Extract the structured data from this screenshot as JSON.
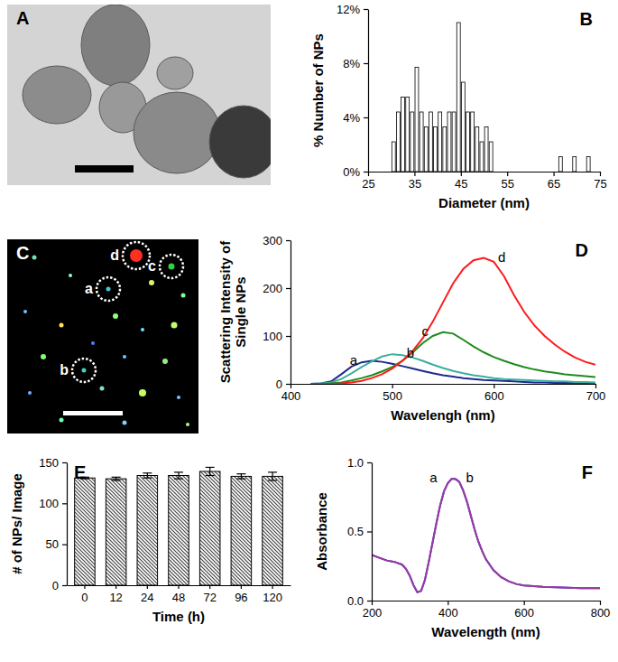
{
  "chart_data": [
    {
      "type": "image",
      "title": "A"
    },
    {
      "type": "histogram",
      "title": "B",
      "x_label": "Diameter (nm)",
      "y_label": "% Number of NPs",
      "bins": [
        30,
        31,
        32,
        33,
        34,
        35,
        36,
        37,
        38,
        39,
        40,
        41,
        42,
        43,
        44,
        45,
        46,
        47,
        48,
        49,
        50,
        51,
        52,
        53,
        54,
        55,
        56,
        57,
        58,
        59,
        60,
        61,
        62,
        63,
        64,
        65,
        66,
        67,
        68,
        69,
        70,
        71,
        72,
        73
      ],
      "values": [
        2.2,
        4.4,
        5.5,
        5.5,
        4.4,
        7.7,
        4.4,
        3.3,
        4.4,
        3.3,
        4.4,
        3.3,
        4.4,
        4.4,
        11.0,
        6.6,
        4.4,
        4.4,
        3.3,
        2.2,
        3.3,
        2.2,
        0,
        0,
        0,
        0,
        0,
        0,
        0,
        0,
        0,
        0,
        0,
        0,
        0,
        0,
        1.1,
        0,
        0,
        1.1,
        0,
        0,
        1.1
      ],
      "color": "#ffffff",
      "xlim": [
        25,
        75
      ],
      "xticks": [
        25,
        35,
        45,
        55,
        65,
        75
      ],
      "ylim": [
        0,
        12
      ],
      "yticks": [
        {
          "value": 0,
          "label": "0%"
        },
        {
          "value": 4,
          "label": "4%"
        },
        {
          "value": 8,
          "label": "8%"
        },
        {
          "value": 12,
          "label": "12%"
        }
      ]
    },
    {
      "type": "image",
      "title": "C",
      "annotations": [
        "a",
        "b",
        "c",
        "d"
      ]
    },
    {
      "type": "line",
      "title": "D",
      "x_label": "Wavelengh (nm)",
      "y_label": [
        "Scattering Intensity of",
        "Single NPs"
      ],
      "x": [
        420,
        430,
        440,
        450,
        460,
        470,
        480,
        490,
        500,
        510,
        520,
        530,
        540,
        550,
        560,
        570,
        580,
        590,
        600,
        610,
        620,
        630,
        640,
        650,
        660,
        670,
        680,
        690,
        700
      ],
      "series": [
        {
          "name": "a",
          "color": "#1c2a8c",
          "values": [
            0,
            1,
            5,
            20,
            36,
            45,
            48,
            46,
            42,
            37,
            32,
            27,
            22,
            18,
            15,
            12,
            10,
            8,
            7,
            6,
            5,
            4,
            3,
            3,
            2,
            2,
            2,
            1,
            1
          ]
        },
        {
          "name": "b",
          "color": "#3cae9e",
          "values": [
            0,
            1,
            3,
            10,
            22,
            35,
            47,
            57,
            62,
            60,
            55,
            48,
            40,
            33,
            27,
            22,
            18,
            15,
            12,
            10,
            9,
            8,
            7,
            6,
            5,
            5,
            4,
            4,
            3
          ]
        },
        {
          "name": "c",
          "color": "#1e8c1e",
          "values": [
            0,
            0,
            1,
            3,
            7,
            12,
            18,
            26,
            35,
            48,
            65,
            85,
            100,
            108,
            105,
            92,
            78,
            66,
            56,
            48,
            41,
            35,
            30,
            26,
            23,
            20,
            18,
            16,
            14
          ]
        },
        {
          "name": "d",
          "color": "#ff1a1a",
          "values": [
            0,
            0,
            0,
            1,
            3,
            6,
            12,
            20,
            32,
            48,
            68,
            95,
            130,
            170,
            210,
            240,
            258,
            263,
            255,
            225,
            185,
            150,
            122,
            100,
            82,
            67,
            55,
            46,
            40
          ]
        }
      ],
      "xlim": [
        400,
        700
      ],
      "xticks": [
        400,
        500,
        600,
        700
      ],
      "ylim": [
        0,
        300
      ],
      "yticks": [
        0,
        100,
        200,
        300
      ]
    },
    {
      "type": "bar",
      "title": "E",
      "x_label": "Time (h)",
      "y_label": "# of NPs/ Image",
      "categories": [
        "0",
        "12",
        "24",
        "48",
        "72",
        "96",
        "120"
      ],
      "values": [
        131,
        130,
        134,
        134,
        139,
        133,
        133
      ],
      "errors": [
        1,
        2,
        3,
        4,
        5,
        3,
        5
      ],
      "color": "#444444",
      "ylim": [
        0,
        150
      ],
      "yticks": [
        0,
        50,
        100,
        150
      ]
    },
    {
      "type": "line",
      "title": "F",
      "x_label": "Wavelength (nm)",
      "y_label": "Absorbance",
      "x": [
        200,
        220,
        240,
        260,
        280,
        290,
        300,
        310,
        320,
        330,
        340,
        350,
        360,
        370,
        380,
        390,
        400,
        410,
        420,
        430,
        440,
        450,
        460,
        470,
        480,
        490,
        500,
        520,
        540,
        560,
        580,
        600,
        650,
        700,
        750,
        800
      ],
      "series": [
        {
          "name": "a",
          "color": "#3a3ad0",
          "values": [
            0.33,
            0.31,
            0.29,
            0.28,
            0.26,
            0.23,
            0.18,
            0.11,
            0.06,
            0.07,
            0.15,
            0.28,
            0.42,
            0.56,
            0.69,
            0.79,
            0.85,
            0.88,
            0.88,
            0.86,
            0.8,
            0.72,
            0.62,
            0.52,
            0.43,
            0.36,
            0.3,
            0.22,
            0.17,
            0.14,
            0.12,
            0.11,
            0.1,
            0.095,
            0.09,
            0.09
          ]
        },
        {
          "name": "b",
          "color": "#9a3aa0",
          "values": [
            0.33,
            0.31,
            0.29,
            0.28,
            0.26,
            0.23,
            0.18,
            0.11,
            0.06,
            0.07,
            0.15,
            0.28,
            0.42,
            0.56,
            0.69,
            0.79,
            0.85,
            0.88,
            0.88,
            0.86,
            0.8,
            0.72,
            0.62,
            0.52,
            0.43,
            0.36,
            0.3,
            0.22,
            0.17,
            0.14,
            0.12,
            0.11,
            0.1,
            0.095,
            0.09,
            0.09
          ]
        }
      ],
      "xlim": [
        200,
        800
      ],
      "xticks": [
        200,
        400,
        600,
        800
      ],
      "ylim": [
        0,
        1
      ],
      "yticks": [
        {
          "value": 0,
          "label": "0.0"
        },
        {
          "value": 0.5,
          "label": "0.5"
        },
        {
          "value": 1,
          "label": "1.0"
        }
      ]
    }
  ]
}
